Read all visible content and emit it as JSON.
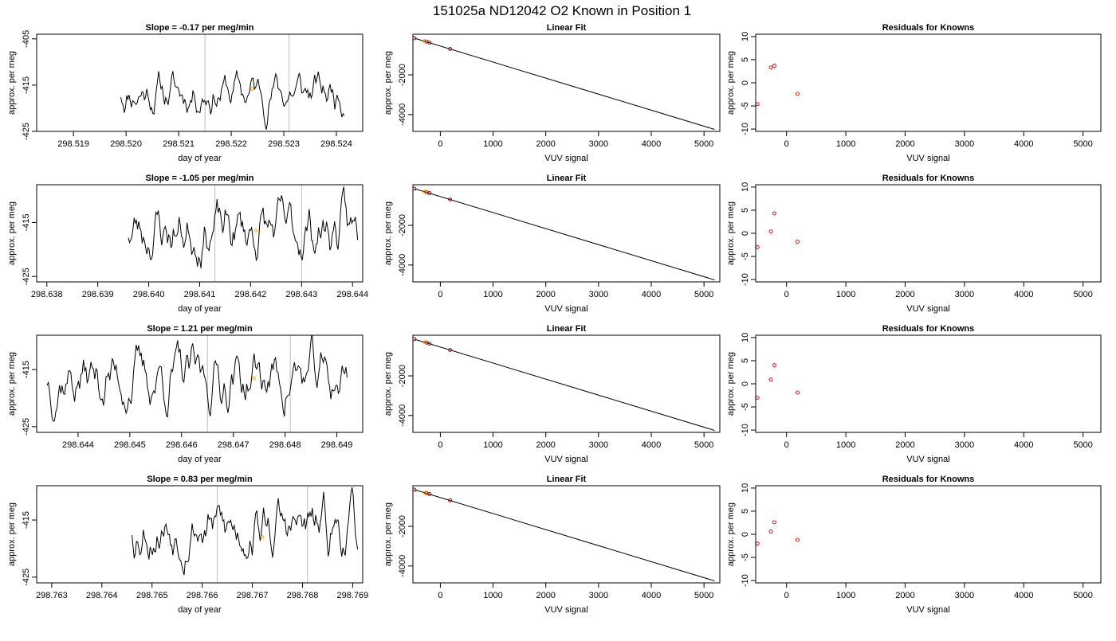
{
  "figure_title": "151025a     ND12042   O2 Known in Position  1",
  "colors": {
    "line": "#000000",
    "ref_line": "#bebebe",
    "known_point": "#ffa500",
    "residual_point": "#cd0000"
  },
  "chart_data": [
    {
      "type": "line",
      "title": "Slope =  -0.17  per meg/min",
      "xlabel": "day of year",
      "ylabel": "approx. per meg",
      "xlim": [
        298.5183,
        298.5245
      ],
      "ylim": [
        -425,
        -404
      ],
      "xticks": [
        "298.519",
        "298.520",
        "298.521",
        "298.522",
        "298.523",
        "298.524"
      ],
      "yticks": [
        "-425",
        "-415",
        "-405"
      ],
      "vlines": [
        298.5215,
        298.5231
      ],
      "known_point": {
        "x": 298.5224,
        "y": -415.8
      },
      "trace": {
        "x_start": 298.5199,
        "x_end": 298.52415,
        "n": 190,
        "seed": 11,
        "center": -416.5,
        "amplitude": 6.5
      }
    },
    {
      "type": "scatter",
      "title": "Linear Fit",
      "xlabel": "VUV signal",
      "ylabel": "approx. per meg",
      "xlim": [
        -520,
        5300
      ],
      "ylim": [
        -4850,
        50
      ],
      "xticks": [
        0,
        1000,
        2000,
        3000,
        4000,
        5000
      ],
      "yticks": [
        -2000,
        -4000
      ],
      "fit_line": {
        "x": [
          -490,
          5200
        ],
        "y": [
          -150,
          -4750
        ]
      },
      "points": [
        {
          "x": -490,
          "y": -150
        },
        {
          "x": -265,
          "y": -322
        },
        {
          "x": -205,
          "y": -370
        },
        {
          "x": 185,
          "y": -690
        }
      ],
      "known_point": {
        "x": -300,
        "y": -295
      }
    },
    {
      "type": "scatter",
      "title": "Residuals for Knowns",
      "xlabel": "VUV signal",
      "ylabel": "approx. per meg",
      "xlim": [
        -520,
        5300
      ],
      "ylim": [
        -10.5,
        10.5
      ],
      "xticks": [
        0,
        1000,
        2000,
        3000,
        4000,
        5000
      ],
      "yticks": [
        -10,
        -5,
        0,
        5,
        10
      ],
      "points": [
        {
          "x": -490,
          "y": -4.6
        },
        {
          "x": -265,
          "y": 3.3
        },
        {
          "x": -205,
          "y": 3.7
        },
        {
          "x": 185,
          "y": -2.4
        }
      ]
    },
    {
      "type": "line",
      "title": "Slope =  -1.05  per meg/min",
      "xlabel": "day of year",
      "ylabel": "approx. per meg",
      "xlim": [
        298.6378,
        298.6442
      ],
      "ylim": [
        -426,
        -408
      ],
      "xticks": [
        "298.638",
        "298.639",
        "298.640",
        "298.641",
        "298.642",
        "298.643",
        "298.644"
      ],
      "yticks": [
        "-425",
        "-415"
      ],
      "vlines": [
        298.6413,
        298.643
      ],
      "known_point": {
        "x": 298.6421,
        "y": -416.5
      },
      "trace": {
        "x_start": 298.6396,
        "x_end": 298.6441,
        "n": 200,
        "seed": 23,
        "center": -416.5,
        "amplitude": 6.5
      }
    },
    {
      "type": "scatter",
      "title": "Linear Fit",
      "xlabel": "VUV signal",
      "ylabel": "approx. per meg",
      "xlim": [
        -520,
        5300
      ],
      "ylim": [
        -4850,
        50
      ],
      "xticks": [
        0,
        1000,
        2000,
        3000,
        4000,
        5000
      ],
      "yticks": [
        -2000,
        -4000
      ],
      "fit_line": {
        "x": [
          -490,
          5200
        ],
        "y": [
          -150,
          -4750
        ]
      },
      "points": [
        {
          "x": -490,
          "y": -150
        },
        {
          "x": -265,
          "y": -322
        },
        {
          "x": -205,
          "y": -370
        },
        {
          "x": 185,
          "y": -690
        }
      ],
      "known_point": {
        "x": -300,
        "y": -295
      }
    },
    {
      "type": "scatter",
      "title": "Residuals for Knowns",
      "xlabel": "VUV signal",
      "ylabel": "approx. per meg",
      "xlim": [
        -520,
        5300
      ],
      "ylim": [
        -10.5,
        10.5
      ],
      "xticks": [
        0,
        1000,
        2000,
        3000,
        4000,
        5000
      ],
      "yticks": [
        -10,
        -5,
        0,
        5,
        10
      ],
      "points": [
        {
          "x": -490,
          "y": -3.0
        },
        {
          "x": -265,
          "y": 0.4
        },
        {
          "x": -205,
          "y": 4.3
        },
        {
          "x": 185,
          "y": -1.8
        }
      ]
    },
    {
      "type": "line",
      "title": "Slope =  1.21  per meg/min",
      "xlabel": "day of year",
      "ylabel": "approx. per meg",
      "xlim": [
        298.6432,
        298.6495
      ],
      "ylim": [
        -426,
        -409
      ],
      "xticks": [
        "298.644",
        "298.645",
        "298.646",
        "298.647",
        "298.648",
        "298.649"
      ],
      "yticks": [
        "-425",
        "-415"
      ],
      "vlines": [
        298.6465,
        298.6481
      ],
      "known_point": {
        "x": 298.6474,
        "y": -416.5
      },
      "trace": {
        "x_start": 298.6434,
        "x_end": 298.6492,
        "n": 240,
        "seed": 37,
        "center": -416.5,
        "amplitude": 6.5
      }
    },
    {
      "type": "scatter",
      "title": "Linear Fit",
      "xlabel": "VUV signal",
      "ylabel": "approx. per meg",
      "xlim": [
        -520,
        5300
      ],
      "ylim": [
        -4850,
        50
      ],
      "xticks": [
        0,
        1000,
        2000,
        3000,
        4000,
        5000
      ],
      "yticks": [
        -2000,
        -4000
      ],
      "fit_line": {
        "x": [
          -490,
          5200
        ],
        "y": [
          -150,
          -4750
        ]
      },
      "points": [
        {
          "x": -490,
          "y": -150
        },
        {
          "x": -265,
          "y": -322
        },
        {
          "x": -205,
          "y": -370
        },
        {
          "x": 185,
          "y": -690
        }
      ],
      "known_point": {
        "x": -300,
        "y": -295
      }
    },
    {
      "type": "scatter",
      "title": "Residuals for Knowns",
      "xlabel": "VUV signal",
      "ylabel": "approx. per meg",
      "xlim": [
        -520,
        5300
      ],
      "ylim": [
        -10.5,
        10.5
      ],
      "xticks": [
        0,
        1000,
        2000,
        3000,
        4000,
        5000
      ],
      "yticks": [
        -10,
        -5,
        0,
        5,
        10
      ],
      "points": [
        {
          "x": -490,
          "y": -3.0
        },
        {
          "x": -265,
          "y": 0.9
        },
        {
          "x": -205,
          "y": 4.0
        },
        {
          "x": 185,
          "y": -1.9
        }
      ]
    },
    {
      "type": "line",
      "title": "Slope =  0.83  per meg/min",
      "xlabel": "day of year",
      "ylabel": "approx. per meg",
      "xlim": [
        298.7627,
        298.7692
      ],
      "ylim": [
        -426,
        -409
      ],
      "xticks": [
        "298.763",
        "298.764",
        "298.765",
        "298.766",
        "298.767",
        "298.768",
        "298.769"
      ],
      "yticks": [
        "-425",
        "-415"
      ],
      "vlines": [
        298.7663,
        298.7681
      ],
      "known_point": {
        "x": 298.7672,
        "y": -418
      },
      "trace": {
        "x_start": 298.7646,
        "x_end": 298.7691,
        "n": 200,
        "seed": 53,
        "center": -416.5,
        "amplitude": 6.5
      }
    },
    {
      "type": "scatter",
      "title": "Linear Fit",
      "xlabel": "VUV signal",
      "ylabel": "approx. per meg",
      "xlim": [
        -520,
        5300
      ],
      "ylim": [
        -4850,
        50
      ],
      "xticks": [
        0,
        1000,
        2000,
        3000,
        4000,
        5000
      ],
      "yticks": [
        -2000,
        -4000
      ],
      "fit_line": {
        "x": [
          -490,
          5200
        ],
        "y": [
          -150,
          -4750
        ]
      },
      "points": [
        {
          "x": -490,
          "y": -150
        },
        {
          "x": -265,
          "y": -322
        },
        {
          "x": -205,
          "y": -370
        },
        {
          "x": 185,
          "y": -690
        }
      ],
      "known_point": {
        "x": -300,
        "y": -295
      }
    },
    {
      "type": "scatter",
      "title": "Residuals for Knowns",
      "xlabel": "VUV signal",
      "ylabel": "approx. per meg",
      "xlim": [
        -520,
        5300
      ],
      "ylim": [
        -10.5,
        10.5
      ],
      "xticks": [
        0,
        1000,
        2000,
        3000,
        4000,
        5000
      ],
      "yticks": [
        -10,
        -5,
        0,
        5,
        10
      ],
      "points": [
        {
          "x": -490,
          "y": -2.0
        },
        {
          "x": -265,
          "y": 0.6
        },
        {
          "x": -205,
          "y": 2.6
        },
        {
          "x": 185,
          "y": -1.2
        }
      ]
    }
  ]
}
